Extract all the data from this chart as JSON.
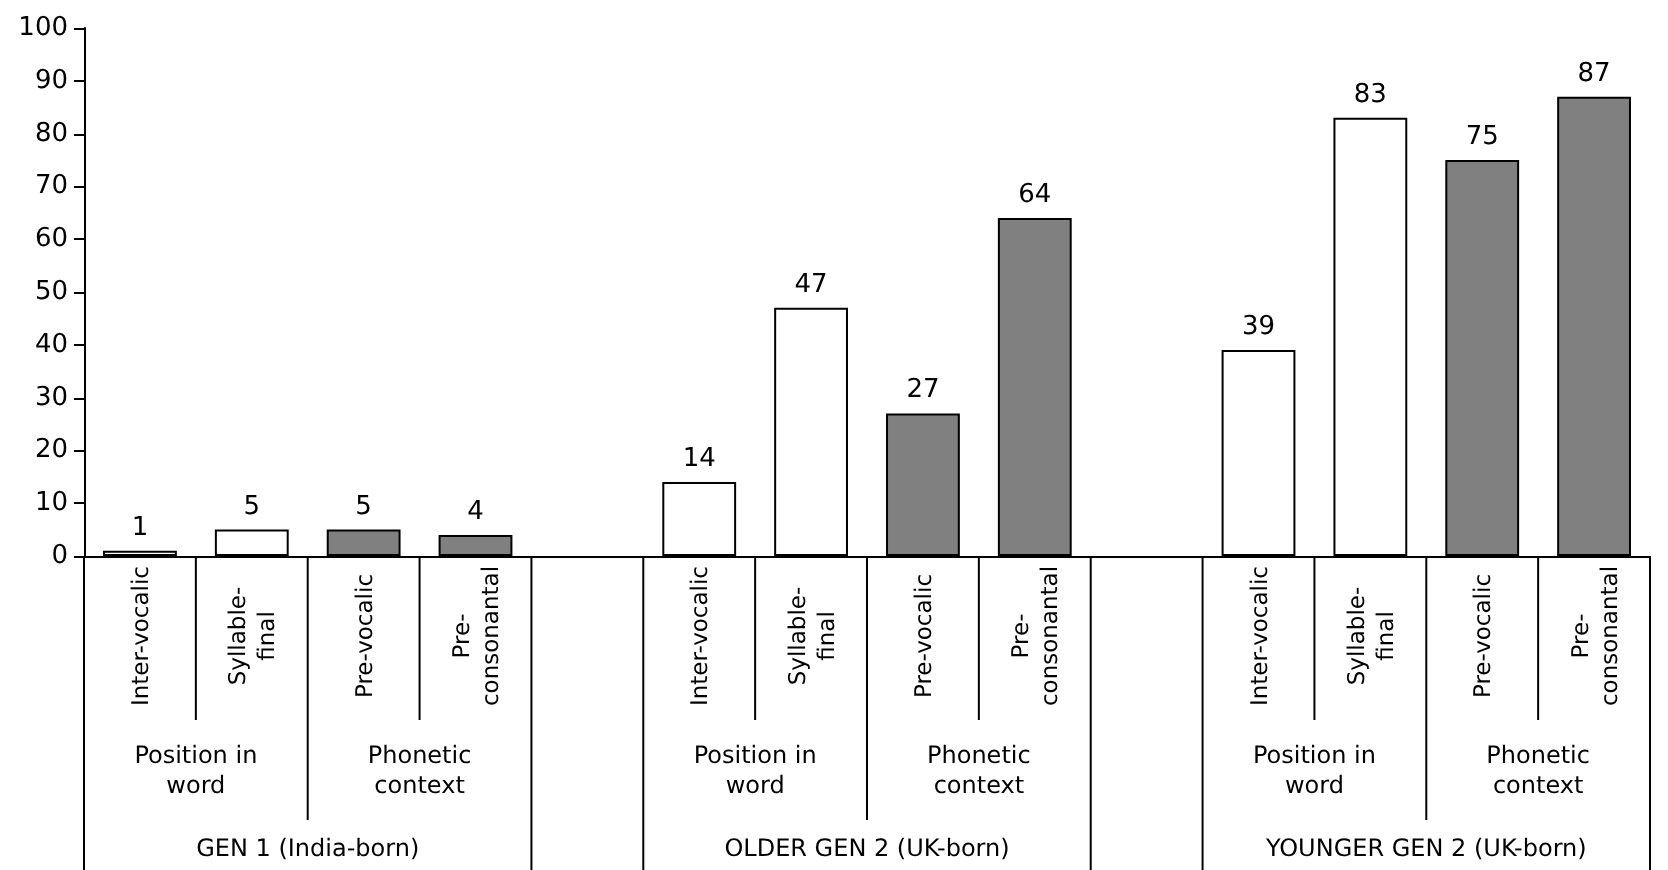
{
  "chart_data": {
    "type": "bar",
    "categories": [
      "Inter-vocalic",
      "Syllable-\nfinal",
      "Pre-vocalic",
      "Pre-\nconsonantal",
      "Inter-vocalic",
      "Syllable-\nfinal",
      "Pre-vocalic",
      "Pre-\nconsonantal",
      "Inter-vocalic",
      "Syllable-\nfinal",
      "Pre-vocalic",
      "Pre-\nconsonantal"
    ],
    "values": [
      1,
      5,
      5,
      4,
      14,
      47,
      27,
      64,
      39,
      83,
      75,
      87
    ],
    "colors": [
      "#ffffff",
      "#ffffff",
      "#808080",
      "#808080",
      "#ffffff",
      "#ffffff",
      "#808080",
      "#808080",
      "#ffffff",
      "#ffffff",
      "#808080",
      "#808080"
    ],
    "ylim": [
      0,
      100
    ],
    "yticks": [
      0,
      10,
      20,
      30,
      40,
      50,
      60,
      70,
      80,
      90,
      100
    ],
    "grid": false,
    "data_labels": true,
    "annotations": [
      "Position in\nword",
      "Phonetic\ncontext",
      "GEN 1 (India-born)",
      "Position in\nword",
      "Phonetic\ncontext",
      "OLDER GEN 2 (UK-born)",
      "Position in\nword",
      "Phonetic\ncontext",
      "YOUNGER GEN 2 (UK-born)"
    ]
  }
}
